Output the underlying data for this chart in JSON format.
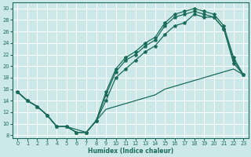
{
  "xlabel": "Humidex (Indice chaleur)",
  "bg_color": "#cce8e8",
  "line_color": "#1a6b5a",
  "grid_color": "#ffffff",
  "xlim": [
    -0.5,
    23.5
  ],
  "ylim": [
    7.5,
    31
  ],
  "xticks": [
    0,
    1,
    2,
    3,
    4,
    5,
    6,
    7,
    8,
    9,
    10,
    11,
    12,
    13,
    14,
    15,
    16,
    17,
    18,
    19,
    20,
    21,
    22,
    23
  ],
  "yticks": [
    8,
    10,
    12,
    14,
    16,
    18,
    20,
    22,
    24,
    26,
    28,
    30
  ],
  "line_top_x": [
    0,
    1,
    2,
    3,
    4,
    5,
    6,
    7,
    8,
    9,
    10,
    11,
    12,
    13,
    14,
    15,
    16,
    17,
    18,
    19,
    20,
    21,
    22,
    23
  ],
  "line_top_y": [
    15.5,
    14.0,
    13.0,
    11.5,
    9.5,
    9.5,
    8.5,
    8.5,
    10.5,
    15.5,
    19.5,
    21.5,
    22.5,
    24.0,
    25.0,
    27.5,
    29.0,
    29.5,
    30.0,
    29.5,
    29.0,
    27.0,
    21.5,
    18.5
  ],
  "line_mid_x": [
    0,
    1,
    2,
    3,
    4,
    5,
    6,
    7,
    8,
    9,
    10,
    11,
    12,
    13,
    14,
    15,
    16,
    17,
    18,
    19,
    20,
    21,
    22,
    23
  ],
  "line_mid_y": [
    15.5,
    14.0,
    13.0,
    11.5,
    9.5,
    9.5,
    8.5,
    8.5,
    10.5,
    15.0,
    19.0,
    21.0,
    22.0,
    23.5,
    24.5,
    27.0,
    28.5,
    29.0,
    29.5,
    29.0,
    28.5,
    26.5,
    21.0,
    18.5
  ],
  "line_lower_x": [
    0,
    1,
    2,
    3,
    4,
    5,
    6,
    7,
    8,
    9,
    10,
    11,
    12,
    13,
    14,
    15,
    16,
    17,
    18,
    19,
    20,
    21,
    22,
    23
  ],
  "line_lower_y": [
    15.5,
    14.0,
    13.0,
    11.5,
    9.5,
    9.5,
    8.5,
    8.5,
    10.5,
    14.0,
    18.0,
    19.5,
    21.0,
    22.5,
    23.5,
    25.5,
    27.0,
    27.5,
    29.0,
    28.5,
    28.5,
    26.5,
    20.5,
    18.5
  ],
  "line_bot_x": [
    0,
    1,
    2,
    3,
    4,
    5,
    6,
    7,
    8,
    9,
    10,
    11,
    12,
    13,
    14,
    15,
    16,
    17,
    18,
    19,
    20,
    21,
    22,
    23
  ],
  "line_bot_y": [
    15.5,
    14.0,
    13.0,
    11.5,
    9.5,
    9.5,
    9.0,
    8.5,
    10.5,
    12.5,
    13.0,
    13.5,
    14.0,
    14.5,
    15.0,
    16.0,
    16.5,
    17.0,
    17.5,
    18.0,
    18.5,
    19.0,
    19.5,
    18.5
  ]
}
